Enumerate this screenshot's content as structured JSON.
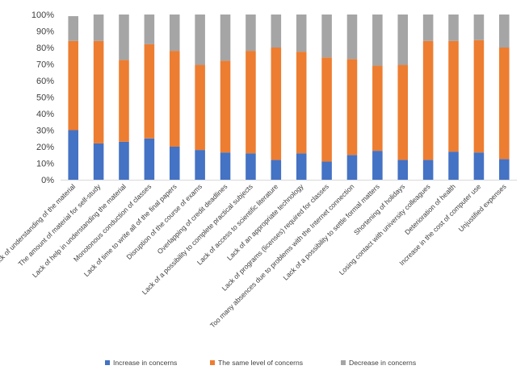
{
  "chart_data": {
    "type": "bar",
    "stacked": true,
    "percent": true,
    "categories": [
      "Lack of understanding of the material",
      "The amount of material for self-study",
      "Lack of help in understanding the material",
      "Monotonous  conduction  of classes",
      "Lack of time to write all of the final papers",
      "Disruption of the course of exams",
      "Overlapping of credit deadlines",
      "Lack of a possibility  to complete practical subjects",
      "Lack of access to scientific  literature",
      "Lack of an appropriate technology",
      "Lack of programs (licenses) required for classes",
      "Too many absences due to problems with  the Internet connection",
      "Lack of a possibility  to settle formal matters",
      "Shortening of holidays",
      "Losing contact  with university colleagues",
      "Deterioration of health",
      "Increase in the cost of computer use",
      "Unjustified  expenses"
    ],
    "series": [
      {
        "name": "Increase in concerns",
        "color": "#4472c4",
        "values": [
          30,
          22,
          23,
          25,
          20,
          18,
          16.5,
          16,
          12,
          16,
          11,
          15,
          17.5,
          12,
          12,
          17,
          16.5,
          12.5
        ]
      },
      {
        "name": "The same level of concerns",
        "color": "#ed7d31",
        "values": [
          54,
          62,
          49.5,
          57,
          58,
          51.5,
          55.5,
          62,
          68,
          61.5,
          63,
          58,
          51.5,
          57.5,
          72,
          67,
          68,
          67.5
        ]
      },
      {
        "name": "Decrease in concerns",
        "color": "#a5a5a5",
        "values": [
          15,
          16,
          27.5,
          18,
          22,
          30.5,
          28,
          22,
          20,
          22.5,
          26,
          27,
          31,
          30.5,
          16,
          16,
          15.5,
          20
        ]
      }
    ],
    "yticks": [
      "0%",
      "10%",
      "20%",
      "30%",
      "40%",
      "50%",
      "60%",
      "70%",
      "80%",
      "90%",
      "100%"
    ],
    "ylim": [
      0,
      100
    ],
    "grid": false,
    "legend_position": "bottom"
  }
}
